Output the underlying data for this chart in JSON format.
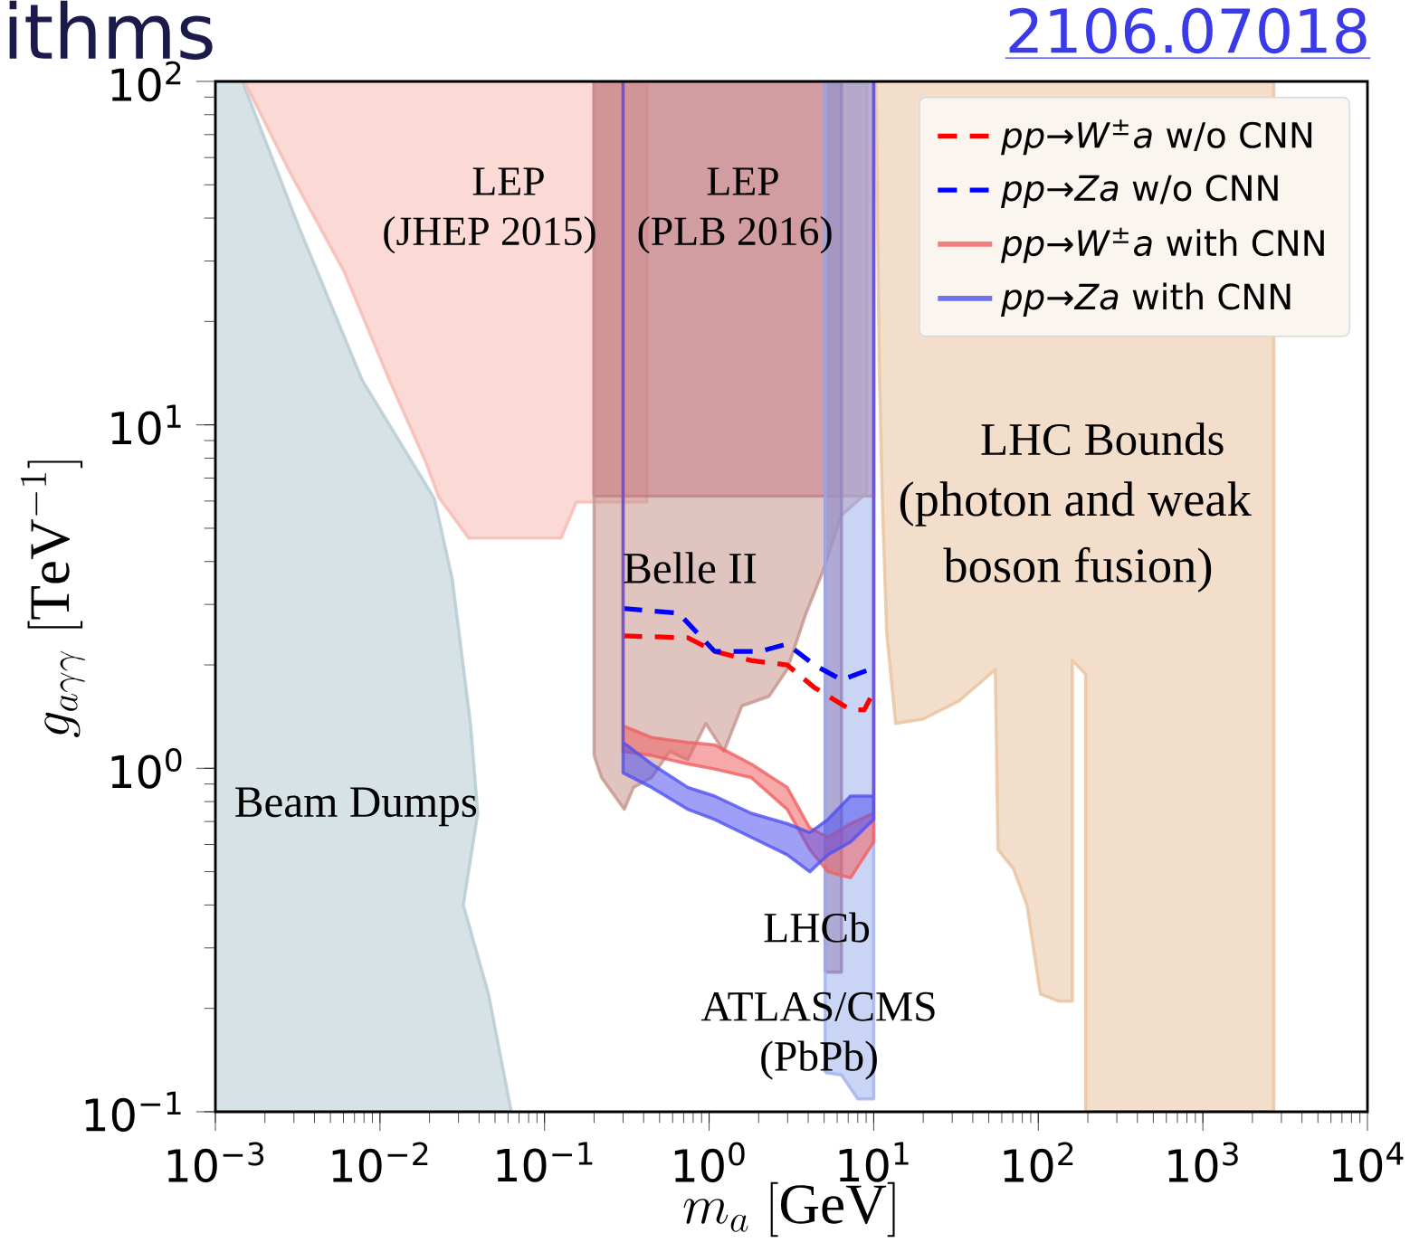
{
  "chart_data": {
    "type": "area",
    "xlabel": "m_a\\ [\\mathrm{GeV}]",
    "ylabel": "g_{a\\gamma\\gamma}\\ [\\mathrm{TeV}^{-1}]",
    "log": "xy",
    "xlim": [
      0.001,
      10000
    ],
    "ylim": [
      0.1,
      100
    ],
    "xticks": [
      {
        "value": 0.001,
        "label": "10$^{−3}$"
      },
      {
        "value": 0.01,
        "label": "10$^{−2}$"
      },
      {
        "value": 0.1,
        "label": "10$^{−1}$"
      },
      {
        "value": 1,
        "label": "10$^{0}$"
      },
      {
        "value": 10,
        "label": "10$^{1}$"
      },
      {
        "value": 100,
        "label": "10$^{2}$"
      },
      {
        "value": 1000,
        "label": "10$^{3}$"
      },
      {
        "value": 10000,
        "label": "10$^{4}$"
      }
    ],
    "yticks": [
      {
        "value": 0.1,
        "label": "10$^{−1}$"
      },
      {
        "value": 1,
        "label": "10$^{0}$"
      },
      {
        "value": 10,
        "label": "10$^{1}$"
      },
      {
        "value": 100,
        "label": "10$^{2}$"
      }
    ],
    "legend": "top right",
    "line_style": "solid",
    "series": [
      {
        "color": "#b5cbd2",
        "x": [
          0.001,
          0.00146,
          0.0032,
          0.0078,
          0.0214,
          0.0275,
          0.0355,
          0.0393,
          0.0321,
          0.0457,
          0.0628,
          0.001
        ],
        "values": [
          100,
          100,
          37.9,
          13.5,
          6.1,
          3.56,
          1.35,
          0.74,
          0.4,
          0.22,
          0.1,
          0.1
        ]
      },
      {
        "color": "#f7b9b1",
        "x": [
          0.0015,
          0.00283,
          0.00604,
          0.0114,
          0.0189,
          0.0228,
          0.0346,
          0.126,
          0.156,
          0.419,
          0.419
        ],
        "values": [
          100,
          54.5,
          28.0,
          13.5,
          7.83,
          6.15,
          4.68,
          4.68,
          5.96,
          5.96,
          100
        ]
      },
      {
        "color": "#c8637f",
        "x": [
          0.2,
          10,
          10,
          0.2
        ],
        "values": [
          6.2,
          6.2,
          100,
          100
        ]
      },
      {
        "color": "#c4948c",
        "x": [
          0.2,
          0.222,
          0.305,
          0.347,
          0.447,
          0.575,
          0.741,
          0.955,
          1.23,
          1.58,
          2.31,
          2.98,
          3.84,
          4.94,
          6.37,
          9.08,
          9.08,
          0.2
        ],
        "values": [
          1.09,
          0.94,
          0.76,
          0.88,
          0.94,
          1.12,
          1.06,
          1.35,
          1.12,
          1.52,
          1.62,
          1.94,
          2.79,
          3.78,
          5.45,
          6.34,
          100,
          100
        ]
      },
      {
        "color": "#8c5078",
        "x": [
          5.07,
          6.37,
          6.37,
          5.07
        ],
        "values": [
          0.255,
          0.255,
          100,
          100
        ]
      },
      {
        "color": "#9fb2ee",
        "x": [
          5.07,
          6.37,
          8.0,
          10,
          10,
          5.07
        ],
        "values": [
          0.13,
          0.128,
          0.109,
          0.109,
          100,
          100
        ]
      },
      {
        "color": "#e8c29e",
        "x": [
          10.3,
          10.8,
          11.3,
          12.0,
          13.6,
          19.9,
          33.0,
          54.8,
          56.9,
          70.6,
          85.3,
          103,
          133,
          161,
          161,
          194,
          194,
          2700,
          2700
        ],
        "values": [
          100,
          15.3,
          5.78,
          2.47,
          1.35,
          1.39,
          1.57,
          1.94,
          0.58,
          0.51,
          0.4,
          0.22,
          0.21,
          0.21,
          2.06,
          1.88,
          0.1,
          0.1,
          100
        ]
      },
      {
        "type": "line",
        "line_style": "dashed",
        "name": "*pp*→*W*$^{±}$*a* w/o CNN",
        "color": "#ff0000",
        "x": [
          0.3,
          0.741,
          1.08,
          1.8,
          2.98,
          4.35,
          7.23,
          8.75,
          10
        ],
        "values": [
          2.43,
          2.4,
          2.19,
          2.06,
          2.0,
          1.72,
          1.48,
          1.48,
          1.67
        ]
      },
      {
        "type": "line",
        "line_style": "dashed",
        "name": "*pp*→*Za* w/o CNN",
        "color": "#0000ff",
        "x": [
          0.3,
          0.653,
          1.08,
          2.04,
          2.98,
          4.35,
          6.37,
          10
        ],
        "values": [
          2.92,
          2.83,
          2.19,
          2.19,
          2.3,
          2.0,
          1.81,
          1.96
        ]
      },
      {
        "name": "*pp*→*W*$^{±}$*a* with CNN",
        "color": "#f06060",
        "x": [
          0.3,
          0.3,
          0.447,
          0.741,
          1.08,
          1.8,
          2.98,
          4.09,
          5.27,
          7.23,
          10,
          10,
          10,
          7.23,
          5.27,
          4.09,
          2.98,
          1.8,
          1.08,
          0.741,
          0.447,
          0.3
        ],
        "values": [
          100,
          1.33,
          1.23,
          1.19,
          1.17,
          1.03,
          0.88,
          0.67,
          0.63,
          0.69,
          0.74,
          100,
          0.61,
          0.48,
          0.5,
          0.58,
          0.76,
          0.94,
          0.995,
          1.03,
          1.09,
          1.12
        ]
      },
      {
        "name": "*pp*→*Za* with CNN",
        "color": "#5050f0",
        "x": [
          0.3,
          0.3,
          0.447,
          0.741,
          1.08,
          1.8,
          2.98,
          4.09,
          5.27,
          7.23,
          10,
          10,
          10,
          7.23,
          5.27,
          4.09,
          2.98,
          1.8,
          1.08,
          0.741,
          0.447,
          0.3
        ],
        "values": [
          100,
          1.19,
          1.03,
          0.88,
          0.83,
          0.74,
          0.69,
          0.65,
          0.71,
          0.83,
          0.83,
          100,
          0.71,
          0.61,
          0.56,
          0.5,
          0.56,
          0.63,
          0.71,
          0.76,
          0.88,
          0.97
        ]
      }
    ],
    "annotations": [
      "ithms",
      "2106.07018",
      "LEP",
      "(JHEP 2015)",
      "LEP",
      "(PLB 2016)",
      "Belle II",
      "LHC Bounds",
      "(photon and weak",
      "boson fusion)",
      "Beam Dumps",
      "LHCb",
      "ATLAS/CMS",
      "(PbPb)"
    ]
  }
}
